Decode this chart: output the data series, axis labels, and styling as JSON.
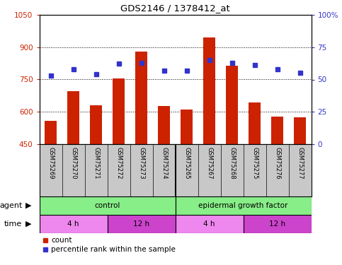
{
  "title": "GDS2146 / 1378412_at",
  "samples": [
    "GSM75269",
    "GSM75270",
    "GSM75271",
    "GSM75272",
    "GSM75273",
    "GSM75274",
    "GSM75265",
    "GSM75267",
    "GSM75268",
    "GSM75275",
    "GSM75276",
    "GSM75277"
  ],
  "counts": [
    558,
    695,
    630,
    755,
    878,
    628,
    610,
    945,
    815,
    645,
    580,
    575
  ],
  "percentiles": [
    53,
    58,
    54,
    62,
    63,
    57,
    57,
    65,
    63,
    61,
    58,
    55
  ],
  "ylim_left": [
    450,
    1050
  ],
  "ylim_right": [
    0,
    100
  ],
  "yticks_left": [
    450,
    600,
    750,
    900,
    1050
  ],
  "yticks_right": [
    0,
    25,
    50,
    75,
    100
  ],
  "bar_color": "#CC2200",
  "dot_color": "#3333CC",
  "bg_color": "#C8C8C8",
  "agent_bar_color": "#88EE88",
  "time_colors": [
    "#EE88EE",
    "#CC44CC",
    "#EE88EE",
    "#CC44CC"
  ],
  "agent_groups": [
    {
      "label": "control",
      "start": 0,
      "end": 6
    },
    {
      "label": "epidermal growth factor",
      "start": 6,
      "end": 12
    }
  ],
  "time_groups": [
    {
      "label": "4 h",
      "start": 0,
      "end": 3
    },
    {
      "label": "12 h",
      "start": 3,
      "end": 6
    },
    {
      "label": "4 h",
      "start": 6,
      "end": 9
    },
    {
      "label": "12 h",
      "start": 9,
      "end": 12
    }
  ],
  "legend_count_label": "count",
  "legend_pct_label": "percentile rank within the sample",
  "xlabel_agent": "agent",
  "xlabel_time": "time"
}
